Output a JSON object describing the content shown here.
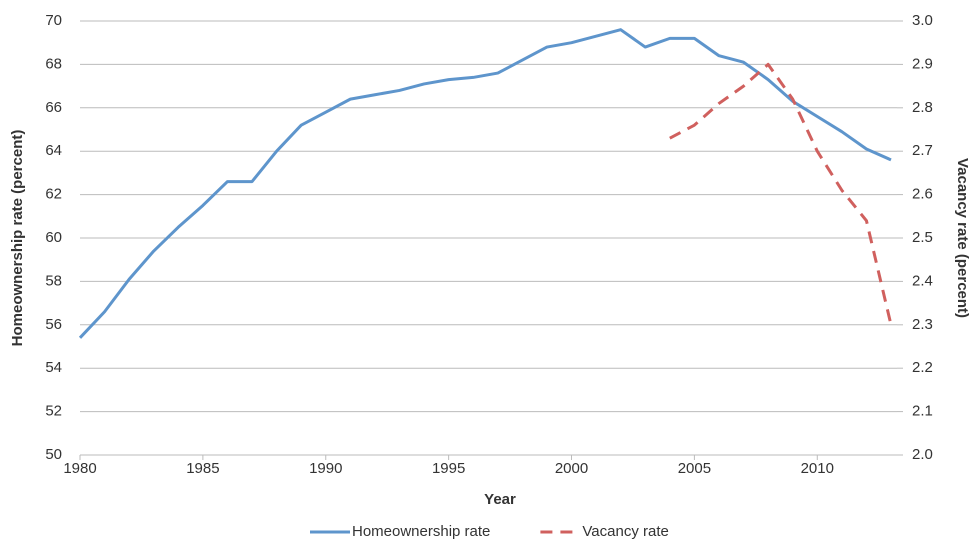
{
  "chart_data": {
    "type": "line",
    "x": [
      1980,
      1981,
      1982,
      1983,
      1984,
      1985,
      1986,
      1987,
      1988,
      1989,
      1990,
      1991,
      1992,
      1993,
      1994,
      1995,
      1996,
      1997,
      1998,
      1999,
      2000,
      2001,
      2002,
      2003,
      2004,
      2005,
      2006,
      2007,
      2008,
      2009,
      2010,
      2011,
      2012,
      2013
    ],
    "series": [
      {
        "name": "Homeownership rate",
        "color": "#5e95cc",
        "dash": false,
        "values": [
          55.4,
          56.6,
          58.1,
          59.4,
          60.5,
          61.5,
          62.6,
          62.6,
          64.0,
          65.2,
          65.8,
          66.4,
          66.6,
          66.8,
          67.1,
          67.3,
          67.4,
          67.6,
          68.2,
          68.8,
          69.0,
          69.3,
          69.6,
          68.8,
          69.2,
          69.2,
          68.4,
          68.1,
          67.3,
          66.3,
          65.6,
          64.9,
          64.1,
          63.6
        ]
      },
      {
        "name": "Vacancy rate",
        "color": "#d0605e",
        "dash": true,
        "axis": "y2",
        "values": [
          null,
          null,
          null,
          null,
          null,
          null,
          null,
          null,
          null,
          null,
          null,
          null,
          null,
          null,
          null,
          null,
          null,
          null,
          null,
          null,
          null,
          null,
          null,
          null,
          2.73,
          2.76,
          2.81,
          2.85,
          2.9,
          2.82,
          2.7,
          2.61,
          2.54,
          2.3
        ]
      }
    ],
    "xlabel": "Year",
    "ylabel": "Homeownership rate (percent)",
    "y2label": "Vacancy rate (percent)",
    "xlim": [
      1980,
      2013
    ],
    "xticks": [
      1980,
      1985,
      1990,
      1995,
      2000,
      2005,
      2010
    ],
    "ylim": [
      50,
      70
    ],
    "yticks": [
      50,
      52,
      54,
      56,
      58,
      60,
      62,
      64,
      66,
      68,
      70
    ],
    "y2lim": [
      2.0,
      3.0
    ],
    "y2ticks": [
      {
        "value": 2.0,
        "label": "2.0"
      },
      2.1,
      2.2,
      2.3,
      2.4,
      2.5,
      2.6,
      2.7,
      2.8,
      2.9,
      {
        "value": 3.0,
        "label": "3.0"
      }
    ],
    "grid": true,
    "legend": "bottom"
  }
}
